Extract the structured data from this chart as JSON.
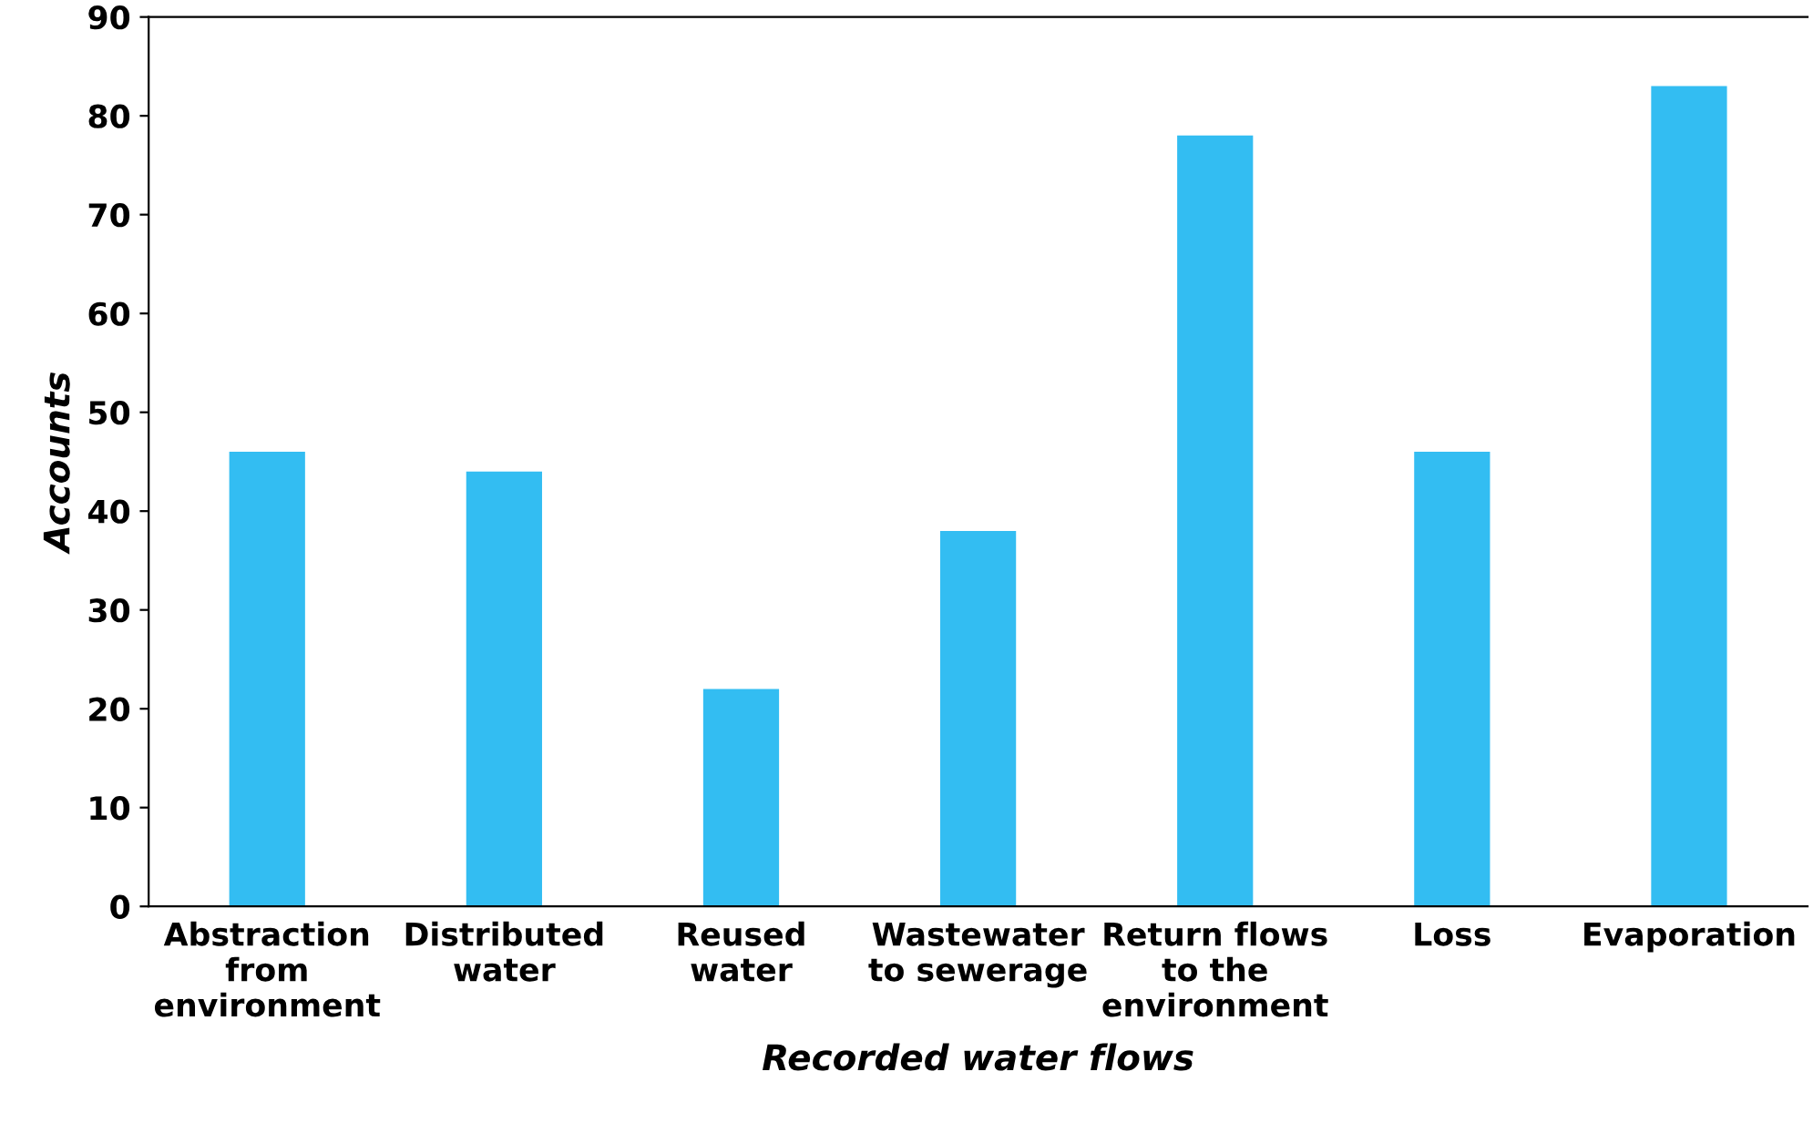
{
  "chart_data": {
    "type": "bar",
    "categories": [
      "Abstraction\nfrom\nenvironment",
      "Distributed\nwater",
      "Reused\nwater",
      "Wastewater\nto sewerage",
      "Return flows\nto the\nenvironment",
      "Loss",
      "Evaporation"
    ],
    "values": [
      46,
      44,
      22,
      38,
      78,
      46,
      83
    ],
    "color": "#33bdf2",
    "xlabel": "Recorded water flows",
    "ylabel": "Accounts",
    "ylim": [
      0,
      90
    ],
    "yticks": [
      0,
      10,
      20,
      30,
      40,
      50,
      60,
      70,
      80,
      90
    ],
    "grid": false,
    "legend": false
  }
}
